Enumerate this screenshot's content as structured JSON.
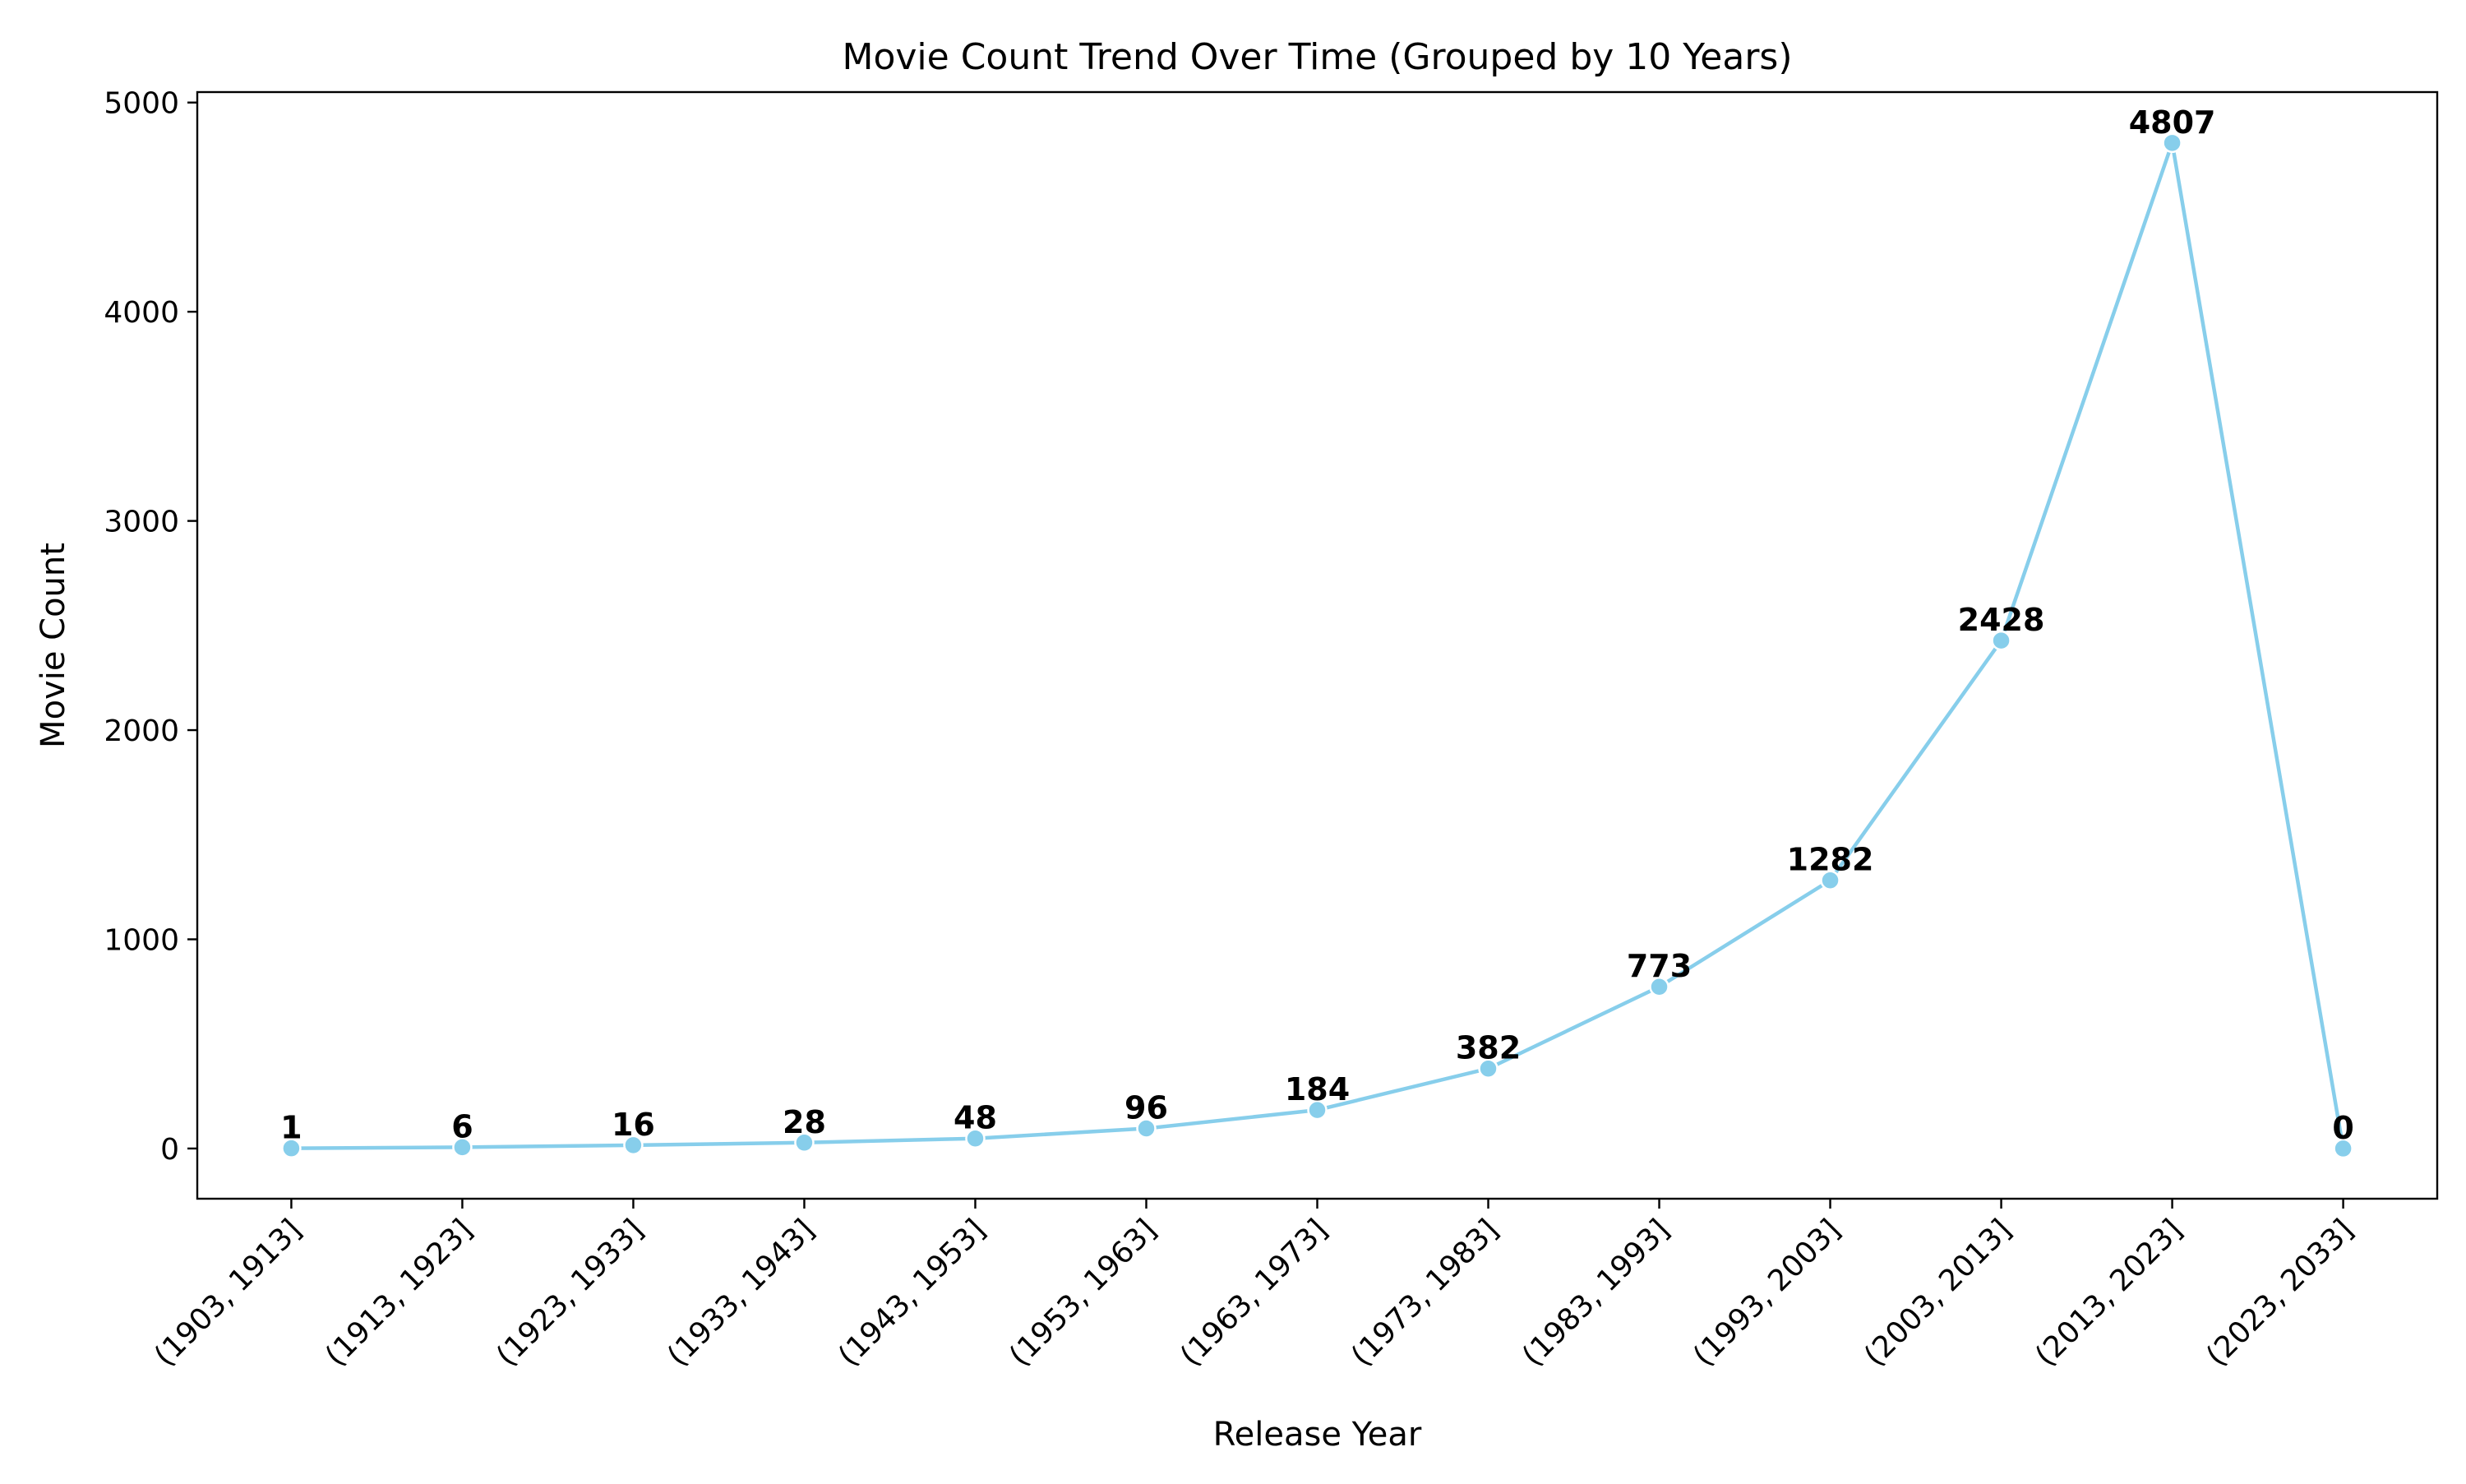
{
  "chart_data": {
    "type": "line",
    "title": "Movie Count Trend Over Time (Grouped by 10 Years)",
    "xlabel": "Release Year",
    "ylabel": "Movie Count",
    "categories": [
      "(1903, 1913]",
      "(1913, 1923]",
      "(1923, 1933]",
      "(1933, 1943]",
      "(1943, 1953]",
      "(1953, 1963]",
      "(1963, 1973]",
      "(1973, 1983]",
      "(1983, 1993]",
      "(1993, 2003]",
      "(2003, 2013]",
      "(2013, 2023]",
      "(2023, 2033]"
    ],
    "series": [
      {
        "values": [
          1,
          6,
          16,
          28,
          48,
          96,
          184,
          382,
          773,
          1282,
          2428,
          4807,
          0
        ],
        "color": "#87CEEB"
      }
    ],
    "ylim": [
      -240,
      5050
    ],
    "yticks": [
      0,
      1000,
      2000,
      3000,
      4000,
      5000
    ],
    "xtick_rotation": 45,
    "grid": false,
    "legend": "none",
    "data_labels": true
  }
}
